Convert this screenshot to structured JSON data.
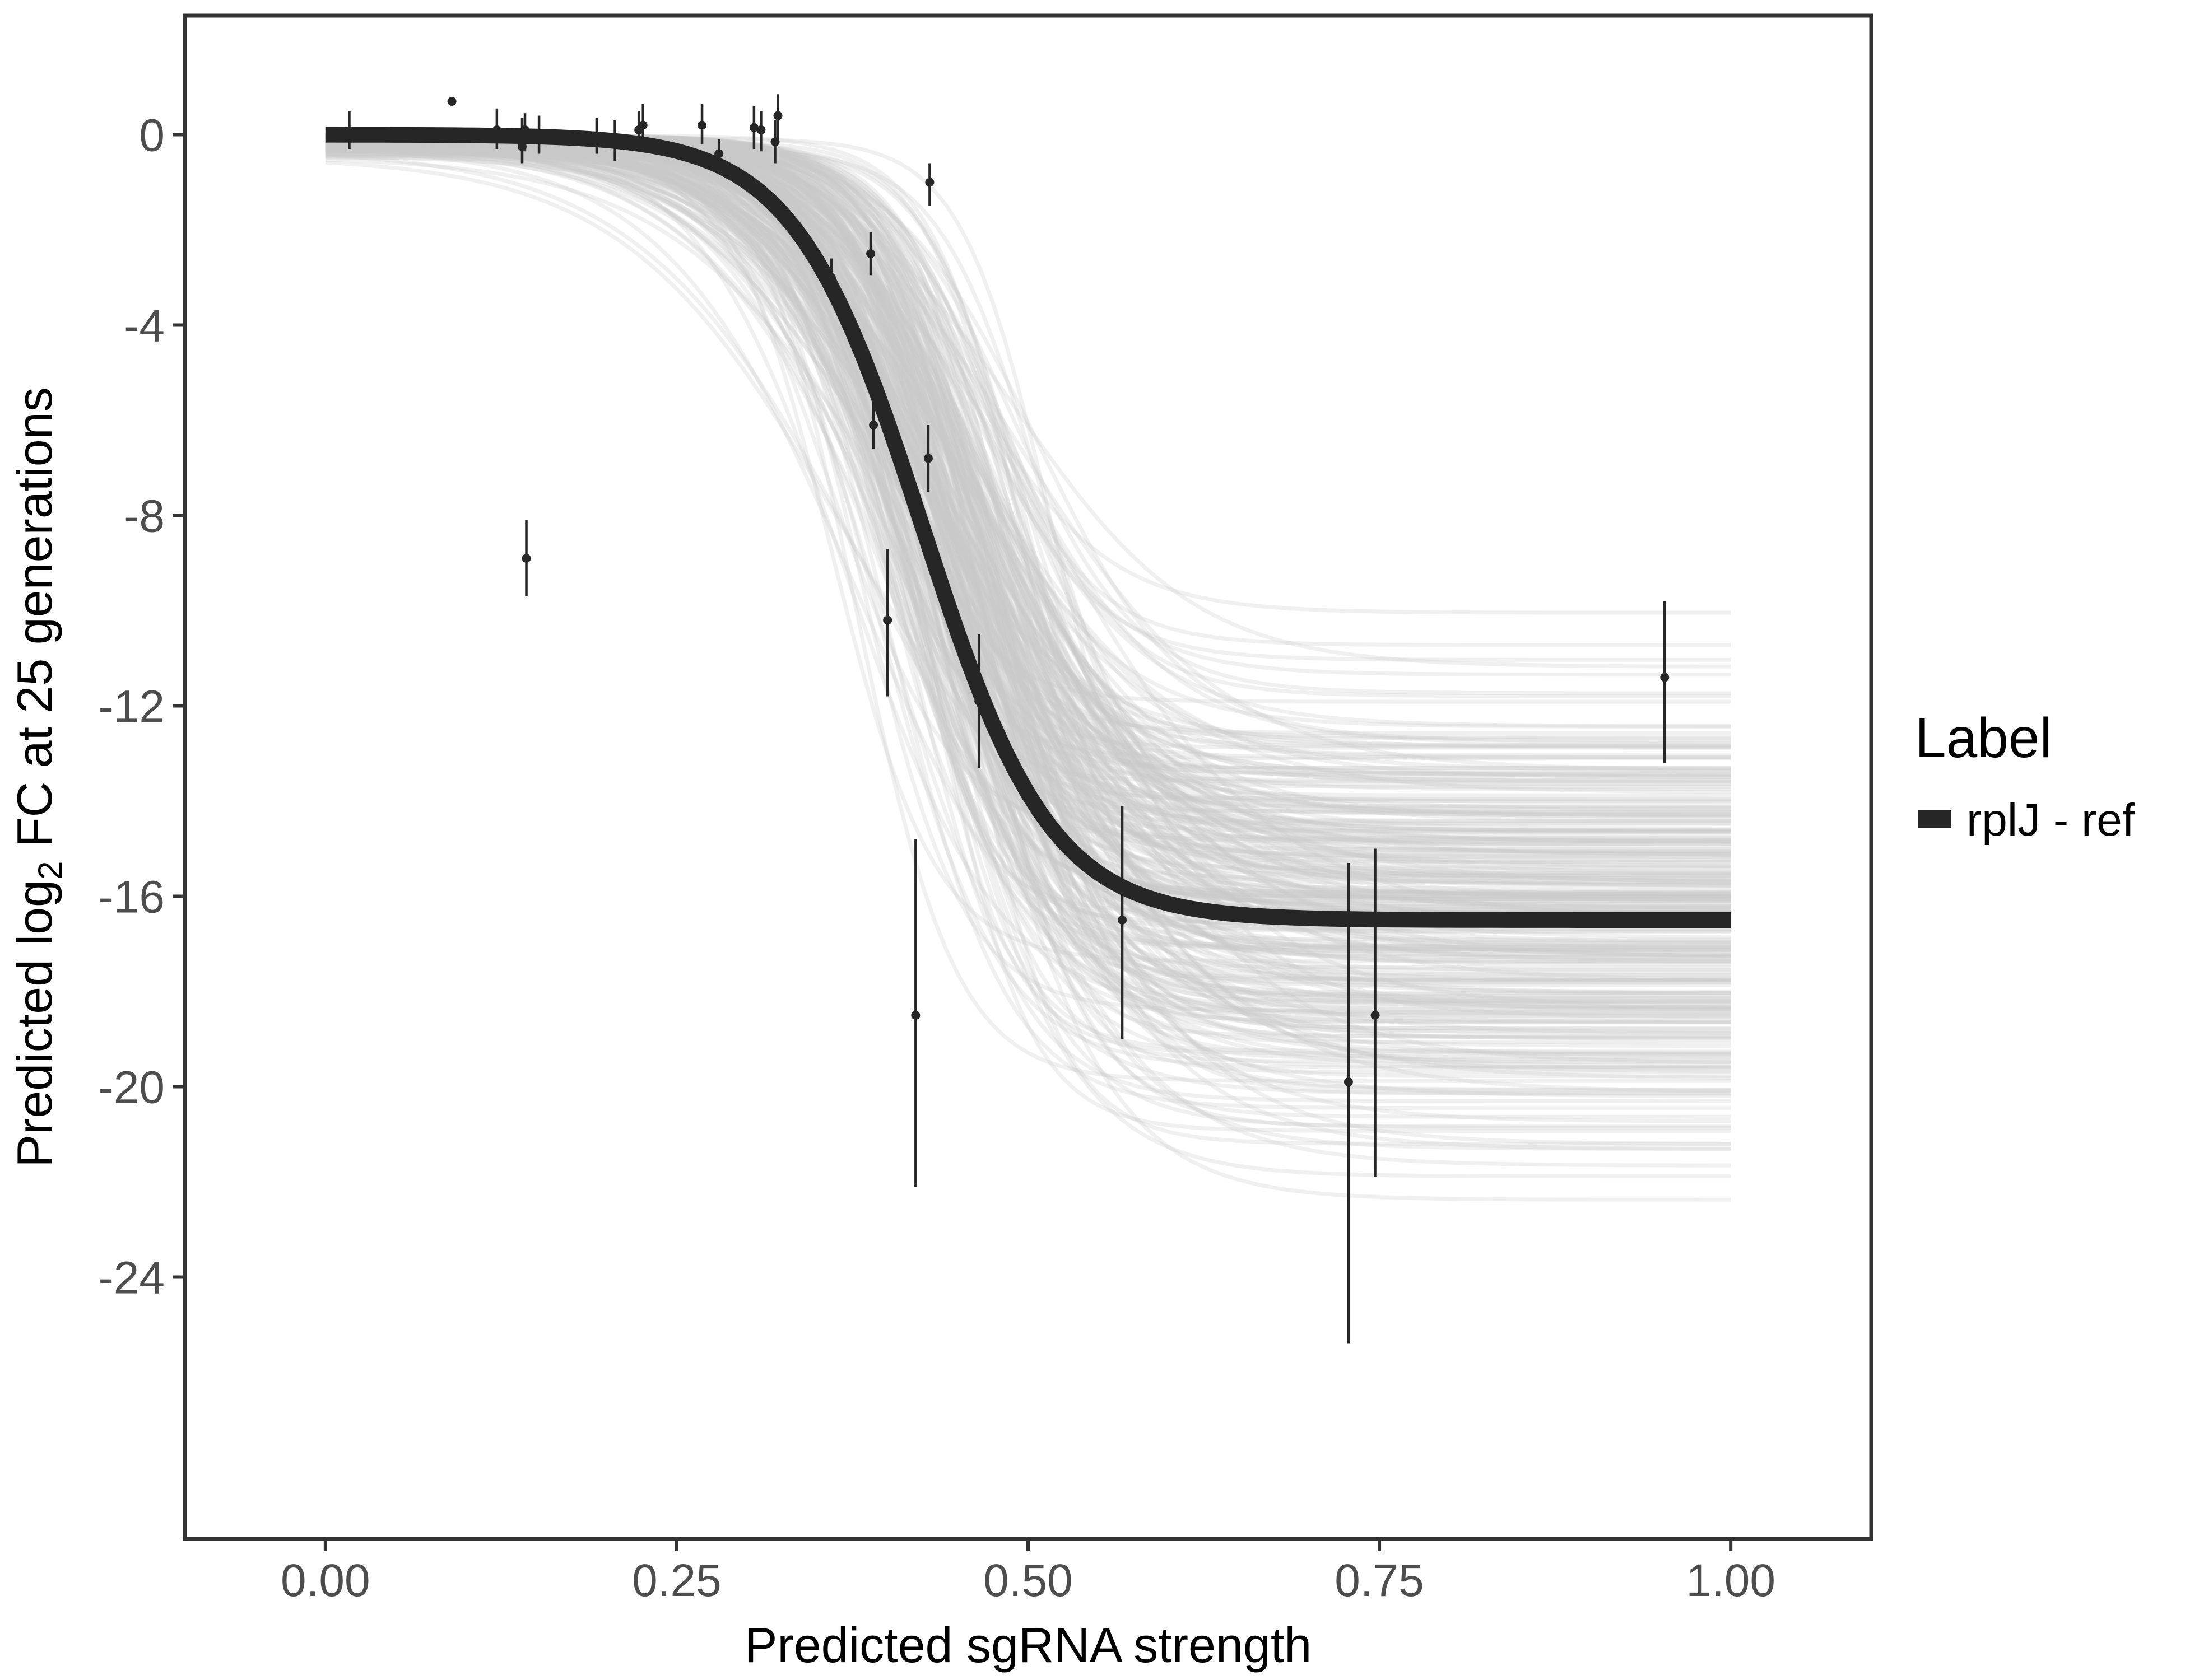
{
  "chart_data": {
    "type": "line",
    "title": "",
    "xlabel": "Predicted sgRNA strength",
    "ylabel": {
      "before": "Predicted  log",
      "subscript": "2",
      "after": " FC at 25 generations"
    },
    "xlim": [
      -0.1,
      1.1
    ],
    "ylim": [
      -29.5,
      2.5
    ],
    "x_ticks": [
      0,
      0.25,
      0.5,
      0.75,
      1
    ],
    "x_tick_labels": [
      "0.00",
      "0.25",
      "0.50",
      "0.75",
      "1.00"
    ],
    "y_ticks": [
      0,
      -4,
      -8,
      -12,
      -16,
      -20,
      -24
    ],
    "y_tick_labels": [
      "0",
      "-4",
      "-8",
      "-12",
      "-16",
      "-20",
      "-24"
    ],
    "grid": false,
    "legend": {
      "title": "Label",
      "position": "right",
      "entries": [
        {
          "label": "rplJ - ref",
          "color": "#262626"
        }
      ]
    },
    "fit_curve": {
      "name": "rplJ - ref",
      "model": "logistic",
      "upper": 0.0,
      "lower": -16.5,
      "midpoint": 0.425,
      "steepness": 22,
      "x_range": [
        0,
        1
      ],
      "color": "#262626"
    },
    "posterior_draws": {
      "color": "#c8c8c8",
      "upper_range": [
        -0.6,
        0.0
      ],
      "lower_range": [
        -23.0,
        -10.0
      ],
      "midpoint_range": [
        0.36,
        0.55
      ],
      "steepness_range": [
        12,
        32
      ]
    },
    "points": [
      {
        "x": 0.017,
        "y": 0.05,
        "lo": -0.3,
        "hi": 0.5
      },
      {
        "x": 0.09,
        "y": 0.7,
        "lo": 0.7,
        "hi": 0.7
      },
      {
        "x": 0.122,
        "y": 0.1,
        "lo": -0.3,
        "hi": 0.55
      },
      {
        "x": 0.14,
        "y": -0.25,
        "lo": -0.6,
        "hi": 0.35
      },
      {
        "x": 0.142,
        "y": 0.1,
        "lo": -0.35,
        "hi": 0.45
      },
      {
        "x": 0.143,
        "y": -8.9,
        "lo": -9.7,
        "hi": -8.1
      },
      {
        "x": 0.152,
        "y": -0.05,
        "lo": -0.4,
        "hi": 0.4
      },
      {
        "x": 0.193,
        "y": -0.05,
        "lo": -0.4,
        "hi": 0.35
      },
      {
        "x": 0.206,
        "y": -0.15,
        "lo": -0.55,
        "hi": 0.3
      },
      {
        "x": 0.223,
        "y": 0.1,
        "lo": -0.35,
        "hi": 0.5
      },
      {
        "x": 0.226,
        "y": 0.2,
        "lo": -0.25,
        "hi": 0.65
      },
      {
        "x": 0.268,
        "y": 0.2,
        "lo": -0.2,
        "hi": 0.65
      },
      {
        "x": 0.28,
        "y": -0.4,
        "lo": -0.7,
        "hi": -0.1
      },
      {
        "x": 0.305,
        "y": 0.15,
        "lo": -0.3,
        "hi": 0.6
      },
      {
        "x": 0.31,
        "y": 0.1,
        "lo": -0.35,
        "hi": 0.5
      },
      {
        "x": 0.32,
        "y": -0.15,
        "lo": -0.6,
        "hi": 0.3
      },
      {
        "x": 0.322,
        "y": 0.4,
        "lo": -0.15,
        "hi": 0.85
      },
      {
        "x": 0.36,
        "y": -3.0,
        "lo": -3.3,
        "hi": -2.6
      },
      {
        "x": 0.388,
        "y": -2.5,
        "lo": -2.95,
        "hi": -2.05
      },
      {
        "x": 0.39,
        "y": -6.1,
        "lo": -6.6,
        "hi": -5.6
      },
      {
        "x": 0.4,
        "y": -10.2,
        "lo": -11.8,
        "hi": -8.7
      },
      {
        "x": 0.42,
        "y": -18.5,
        "lo": -22.1,
        "hi": -14.8
      },
      {
        "x": 0.429,
        "y": -6.8,
        "lo": -7.5,
        "hi": -6.1
      },
      {
        "x": 0.43,
        "y": -1.0,
        "lo": -1.5,
        "hi": -0.6
      },
      {
        "x": 0.465,
        "y": -11.9,
        "lo": -13.3,
        "hi": -10.5
      },
      {
        "x": 0.567,
        "y": -16.5,
        "lo": -19.0,
        "hi": -14.1
      },
      {
        "x": 0.728,
        "y": -19.9,
        "lo": -25.4,
        "hi": -15.3
      },
      {
        "x": 0.747,
        "y": -18.5,
        "lo": -21.9,
        "hi": -15.0
      },
      {
        "x": 0.953,
        "y": -11.4,
        "lo": -13.2,
        "hi": -9.8
      }
    ]
  }
}
